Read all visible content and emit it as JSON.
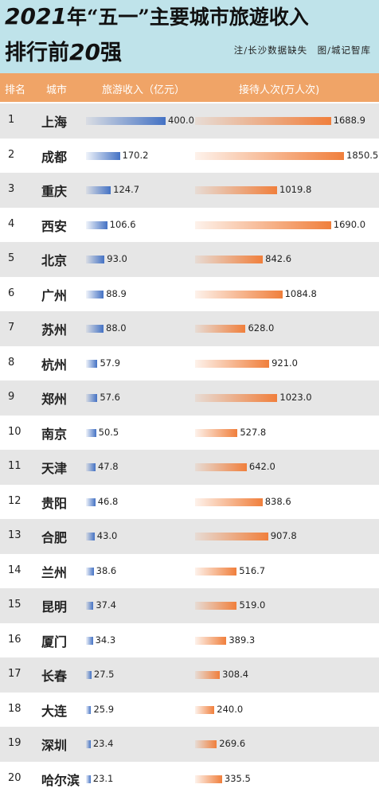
{
  "header": {
    "title_year": "2021",
    "title_rest": "年“五一”主要城市旅遊收入",
    "title_line2_a": "排行前",
    "title_line2_num": "20",
    "title_line2_b": "强",
    "note": "注/长沙数据缺失　图/城记智库"
  },
  "columns": {
    "rank": "排名",
    "city": "城市",
    "revenue": "旅游收入（亿元）",
    "visitors": "接待人次(万人次)"
  },
  "colors": {
    "header_bg": "#bfe3ea",
    "column_header_bg": "#f0a467",
    "revenue_bar": "#4472c4",
    "visitor_bar": "#f07f3c",
    "alt_row": "#e6e6e6"
  },
  "chart_data": {
    "type": "bar",
    "categories": [
      "上海",
      "成都",
      "重庆",
      "西安",
      "北京",
      "广州",
      "苏州",
      "杭州",
      "郑州",
      "南京",
      "天津",
      "贵阳",
      "合肥",
      "兰州",
      "昆明",
      "厦门",
      "长春",
      "大连",
      "深圳",
      "哈尔滨"
    ],
    "ranks": [
      "1",
      "2",
      "3",
      "4",
      "5",
      "6",
      "7",
      "8",
      "9",
      "10",
      "11",
      "12",
      "13",
      "14",
      "15",
      "16",
      "17",
      "18",
      "19",
      "20"
    ],
    "series": [
      {
        "name": "旅游收入（亿元）",
        "values": [
          400.0,
          170.2,
          124.7,
          106.6,
          93.0,
          88.9,
          88.0,
          57.9,
          57.6,
          50.5,
          47.8,
          46.8,
          43.0,
          38.6,
          37.4,
          34.3,
          27.5,
          25.9,
          23.4,
          23.1
        ],
        "labels": [
          "400.0",
          "170.2",
          "124.7",
          "106.6",
          "93.0",
          "88.9",
          "88.0",
          "57.9",
          "57.6",
          "50.5",
          "47.8",
          "46.8",
          "43.0",
          "38.6",
          "37.4",
          "34.3",
          "27.5",
          "25.9",
          "23.4",
          "23.1"
        ]
      },
      {
        "name": "接待人次(万人次)",
        "values": [
          1688.9,
          1850.5,
          1019.8,
          1690.0,
          842.6,
          1084.8,
          628.0,
          921.0,
          1023.0,
          527.8,
          642.0,
          838.6,
          907.8,
          516.7,
          519.0,
          389.3,
          308.4,
          240.0,
          269.6,
          335.5
        ],
        "labels": [
          "1688.9",
          "1850.5",
          "1019.8",
          "1690.0",
          "842.6",
          "1084.8",
          "628.0",
          "921.0",
          "1023.0",
          "527.8",
          "642.0",
          "838.6",
          "907.8",
          "516.7",
          "519.0",
          "389.3",
          "308.4",
          "240.0",
          "269.6",
          "335.5"
        ]
      }
    ]
  }
}
